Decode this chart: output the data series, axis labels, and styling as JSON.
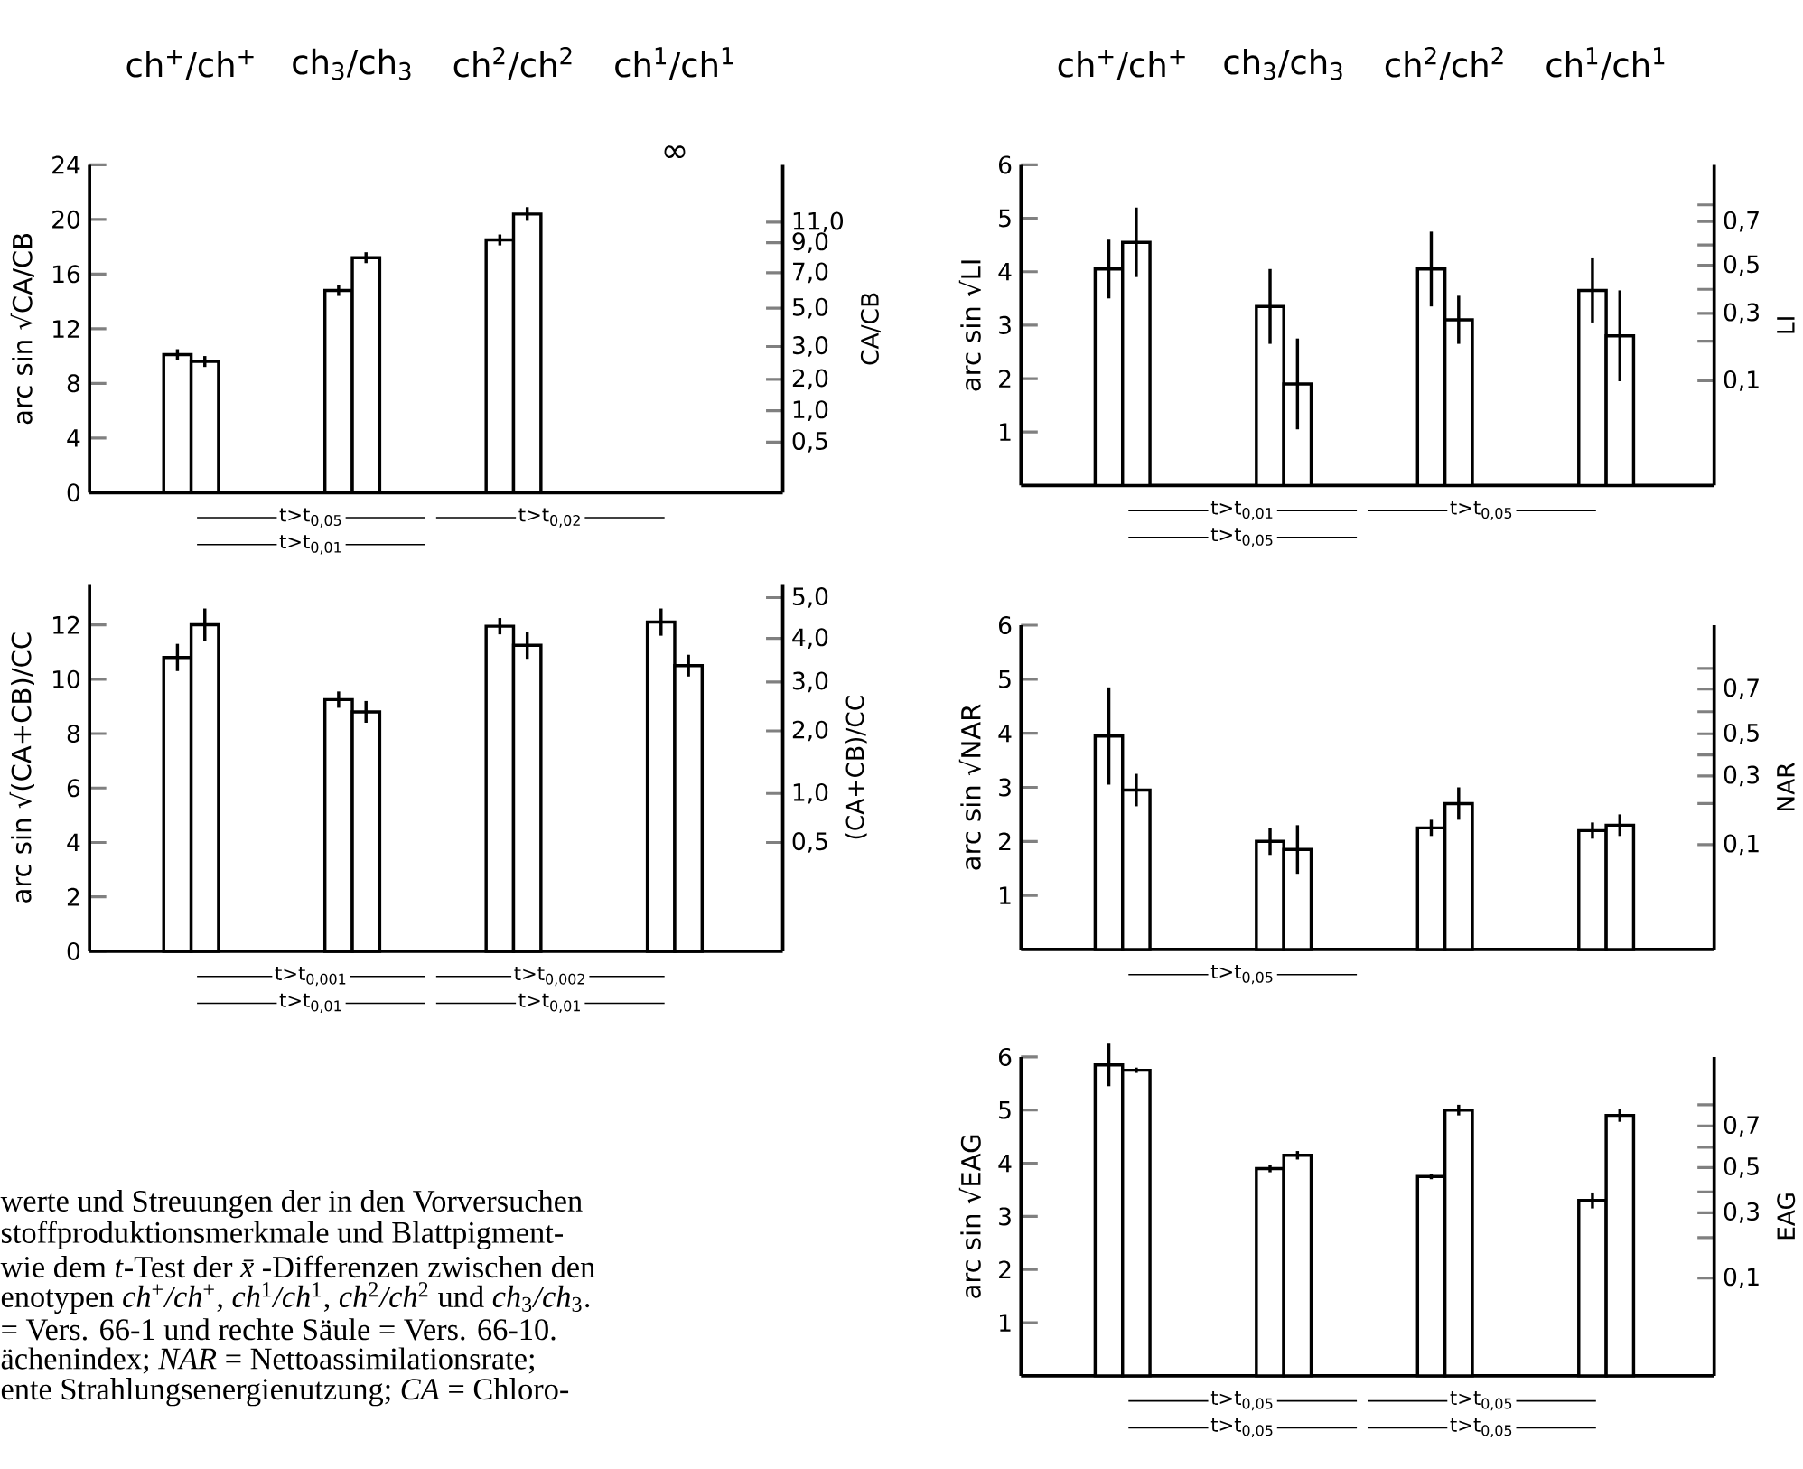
{
  "chart_data": [
    {
      "type": "bar",
      "categories": [
        "ch$^{+}$/ch$^{+}$",
        "ch$_{3}$/ch$_{3}$",
        "ch$^{2}$/ch$^{2}$",
        "ch$^{1}$/ch$^{1}$"
      ],
      "ylabel": "arc sin √CA/CB",
      "y2label": "CA/CB",
      "series": [
        {
          "color": "#ffffff",
          "values": [
            10.1,
            14.8,
            18.5,
            null
          ],
          "errors": [
            0.4,
            0.4,
            0.4,
            null
          ],
          "value_labels": [
            null,
            null,
            null,
            "∞"
          ]
        },
        {
          "color": "#ffffff",
          "values": [
            9.6,
            17.2,
            20.4,
            null
          ],
          "errors": [
            0.4,
            0.4,
            0.5,
            null
          ]
        }
      ],
      "ylim": [
        0,
        24
      ],
      "yticks": [
        0,
        4,
        8,
        12,
        16,
        20,
        24
      ],
      "annotations": [
        "t>t$_{0,05}$",
        "t>t$_{0,02}$",
        "t>t$_{0,01}$",
        "11,0",
        "9,0",
        "7,0",
        "5,0",
        "3,0",
        "2,0",
        "1,0",
        "0,5"
      ]
    },
    {
      "type": "bar",
      "categories": [
        null,
        null,
        null,
        null
      ],
      "ylabel": "arc sin √(CA+CB)/CC",
      "y2label": "(CA+CB)/CC",
      "series": [
        {
          "color": "#ffffff",
          "values": [
            10.8,
            9.25,
            11.95,
            12.1
          ],
          "errors": [
            0.5,
            0.3,
            0.3,
            0.5
          ]
        },
        {
          "color": "#ffffff",
          "values": [
            12.0,
            8.8,
            11.25,
            10.5
          ],
          "errors": [
            0.6,
            0.4,
            0.5,
            0.4
          ]
        }
      ],
      "ylim": [
        0,
        13.5
      ],
      "yticks": [
        0,
        2,
        4,
        6,
        8,
        10,
        12
      ],
      "annotations": [
        "t>t$_{0,001}$",
        "t>t$_{0,002}$",
        "t>t$_{0,01}$",
        "t>t$_{0,01}$",
        "5,0",
        "4,0",
        "3,0",
        "2,0",
        "1,0",
        "0,5"
      ]
    },
    {
      "type": "bar",
      "categories": [
        "ch$^{+}$/ch$^{+}$",
        "ch$_{3}$/ch$_{3}$",
        "ch$^{2}$/ch$^{2}$",
        "ch$^{1}$/ch$^{1}$"
      ],
      "ylabel": "arc sin √LI",
      "y2label": "LI",
      "series": [
        {
          "color": "#ffffff",
          "values": [
            4.05,
            3.35,
            4.05,
            3.65
          ],
          "errors": [
            0.55,
            0.7,
            0.7,
            0.6
          ]
        },
        {
          "color": "#ffffff",
          "values": [
            4.55,
            1.9,
            3.1,
            2.8
          ],
          "errors": [
            0.65,
            0.85,
            0.45,
            0.85
          ]
        }
      ],
      "ylim": [
        0,
        6
      ],
      "yticks": [
        1,
        2,
        3,
        4,
        5,
        6
      ],
      "annotations": [
        "t>t$_{0,01}$",
        "t>t$_{0,05}$",
        "t>t$_{0,05}$",
        "0,7",
        "0,5",
        "0,3",
        "0,1"
      ]
    },
    {
      "type": "bar",
      "categories": [
        null,
        null,
        null,
        null
      ],
      "ylabel": "arc sin √NAR",
      "y2label": "NAR",
      "series": [
        {
          "color": "#ffffff",
          "values": [
            3.95,
            2.0,
            2.25,
            2.2
          ],
          "errors": [
            0.9,
            0.25,
            0.15,
            0.15
          ]
        },
        {
          "color": "#ffffff",
          "values": [
            2.95,
            1.85,
            2.7,
            2.3
          ],
          "errors": [
            0.3,
            0.45,
            0.3,
            0.2
          ]
        }
      ],
      "ylim": [
        0,
        6
      ],
      "yticks": [
        1,
        2,
        3,
        4,
        5,
        6
      ],
      "annotations": [
        "t>t$_{0,05}$",
        "0,7",
        "0,5",
        "0,3",
        "0,1"
      ]
    },
    {
      "type": "bar",
      "categories": [
        null,
        null,
        null,
        null
      ],
      "ylabel": "arc sin √EAG",
      "y2label": "EAG",
      "series": [
        {
          "color": "#ffffff",
          "values": [
            5.85,
            3.9,
            3.75,
            3.3
          ],
          "errors": [
            0.4,
            0.07,
            0.05,
            0.15
          ]
        },
        {
          "color": "#ffffff",
          "values": [
            5.75,
            4.15,
            5.0,
            4.9
          ],
          "errors": [
            0.05,
            0.08,
            0.1,
            0.12
          ]
        }
      ],
      "ylim": [
        0,
        6
      ],
      "yticks": [
        1,
        2,
        3,
        4,
        5,
        6
      ],
      "annotations": [
        "t>t$_{0,05}$",
        "t>t$_{0,05}$",
        "t>t$_{0,05}$",
        "t>t$_{0,05}$",
        "0,7",
        "0,5",
        "0,3",
        "0,1"
      ]
    },
    {
      "type": "other",
      "annotations": [
        "werte und Streuungen der in den Vorversuchen",
        "stoffproduktionsmerkmale und Blattpigment-",
        "wie dem *t*-Test der *x̄*-Differenzen zwischen den",
        "enotypen *ch*$^{+}$*/ch*$^{+}$, *ch*$^{1}$*/ch*$^{1}$, *ch*$^{2}$*/ch*$^{2}$ und *ch*$_{3}$*/ch*$_{3}$.",
        "= Vers. 66-1 und rechte Säule = Vers. 66-10.",
        "ächenindex; *NAR* = Nettoassimilationsrate;",
        "ente Strahlungsenergienutzung; *CA* = Chloro-"
      ]
    }
  ]
}
